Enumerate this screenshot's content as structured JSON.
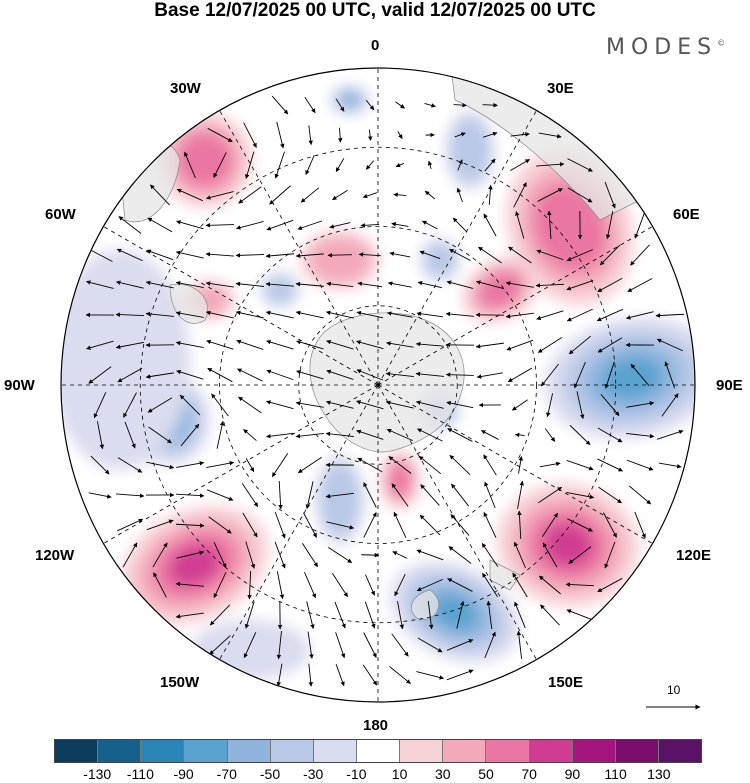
{
  "title": "Base 12/07/2025 00 UTC, valid 12/07/2025 00 UTC",
  "brand": "MODES",
  "brand_mark": "©",
  "longitude_labels": {
    "top": "0",
    "bottom": "180",
    "left": "90W",
    "right": "90E",
    "upper_left_1": "30W",
    "upper_left_2": "60W",
    "upper_right_1": "30E",
    "upper_right_2": "60E",
    "lower_left_1": "120W",
    "lower_left_2": "150W",
    "lower_right_1": "120E",
    "lower_right_2": "150E"
  },
  "vector_scale_label": "10",
  "colorbar": {
    "tick_labels": [
      "-130",
      "-110",
      "-90",
      "-70",
      "-50",
      "-30",
      "-10",
      "10",
      "30",
      "50",
      "70",
      "90",
      "110",
      "130"
    ],
    "colors": [
      "#0c3c5c",
      "#16608c",
      "#2a85b8",
      "#5aa2cf",
      "#8fb5de",
      "#b8c8e6",
      "#dadcef",
      "#ffffff",
      "#f7d3d8",
      "#f3a9ba",
      "#ea76a3",
      "#d03c91",
      "#a3157d",
      "#7b0d6c",
      "#5a1268"
    ]
  },
  "anomaly_colors": {
    "land": "#e6e6e6",
    "land_outline": "#888888"
  }
}
